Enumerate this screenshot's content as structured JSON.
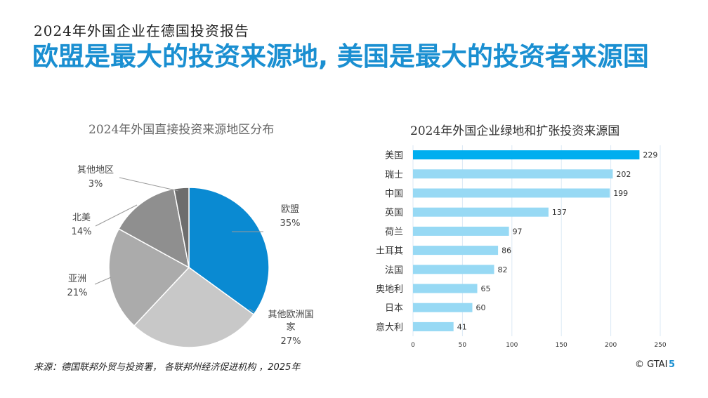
{
  "subtitle": "2024年外国企业在德国投资报告",
  "headline": "欧盟是最大的投资来源地, 美国是最大的投资者来源国",
  "colors": {
    "accent": "#1a8fd1",
    "bar_highlight": "#00aeef",
    "bar_light": "#97d9f4"
  },
  "chart_data": [
    {
      "type": "pie",
      "title": "2024年外国直接投资来源地区分布",
      "categories": [
        "欧盟",
        "其他欧洲国家",
        "亚洲",
        "北美",
        "其他地区"
      ],
      "values": [
        35,
        27,
        21,
        14,
        3
      ],
      "value_labels": [
        "35%",
        "27%",
        "21%",
        "14%",
        "3%"
      ],
      "colors": [
        "#0a8ad2",
        "#c8c8c8",
        "#ababab",
        "#8f8f8f",
        "#6d6d6d"
      ]
    },
    {
      "type": "bar",
      "orientation": "horizontal",
      "title": "2024年外国企业绿地和扩张投资来源国",
      "categories": [
        "美国",
        "瑞士",
        "中国",
        "英国",
        "荷兰",
        "土耳其",
        "法国",
        "奥地利",
        "日本",
        "意大利"
      ],
      "values": [
        229,
        202,
        199,
        137,
        97,
        86,
        82,
        65,
        60,
        41
      ],
      "xlim": [
        0,
        250
      ],
      "xticks": [
        "0",
        "50",
        "100",
        "150",
        "200",
        "250"
      ],
      "highlight_index": 0
    }
  ],
  "footer": {
    "source": "来源：德国联邦外贸与投资署，  各联邦州经济促进机构 ，2025年",
    "copyright": "© GTAI",
    "page": "5"
  }
}
